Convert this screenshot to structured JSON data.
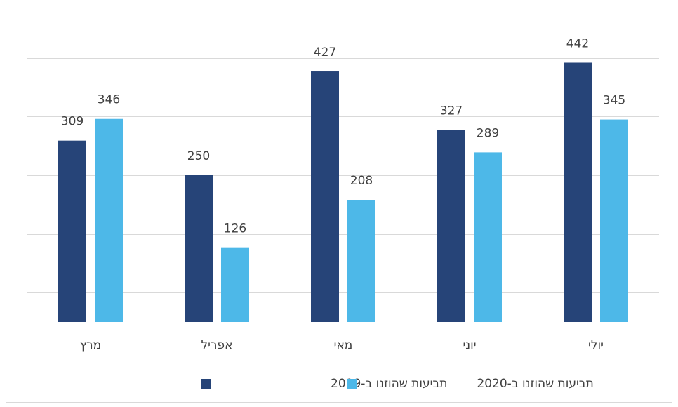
{
  "chart_data": {
    "type": "bar",
    "categories": [
      "מרץ",
      "אפריל",
      "מאי",
      "יוני",
      "יולי"
    ],
    "series": [
      {
        "name": "תביעות שהוזנו ב-2019",
        "color": "#264478",
        "values": [
          309,
          250,
          427,
          327,
          442
        ]
      },
      {
        "name": "תביעות שהוזנו ב-2020",
        "color": "#4db8e8",
        "values": [
          346,
          126,
          208,
          289,
          345
        ]
      }
    ],
    "ylim": [
      0,
      500
    ],
    "yticks": [
      0,
      50,
      100,
      150,
      200,
      250,
      300,
      350,
      400,
      450,
      500
    ],
    "grid": true,
    "legend": "bottom"
  }
}
